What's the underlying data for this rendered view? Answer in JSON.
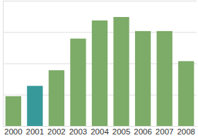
{
  "chart_data": {
    "type": "bar",
    "categories": [
      "2000",
      "2001",
      "2002",
      "2003",
      "2004",
      "2005",
      "2006",
      "2007",
      "2008"
    ],
    "values": [
      0.95,
      1.28,
      1.78,
      2.79,
      3.37,
      3.48,
      3.03,
      3.03,
      2.07
    ],
    "colors": [
      "#7dab68",
      "#37999a",
      "#7dab68",
      "#7dab68",
      "#7dab68",
      "#7dab68",
      "#7dab68",
      "#7dab68",
      "#7dab68"
    ],
    "ylim": [
      0,
      4
    ],
    "yticks": [
      0,
      1,
      2,
      3,
      4
    ],
    "grid": true,
    "tick_labels": "x"
  }
}
